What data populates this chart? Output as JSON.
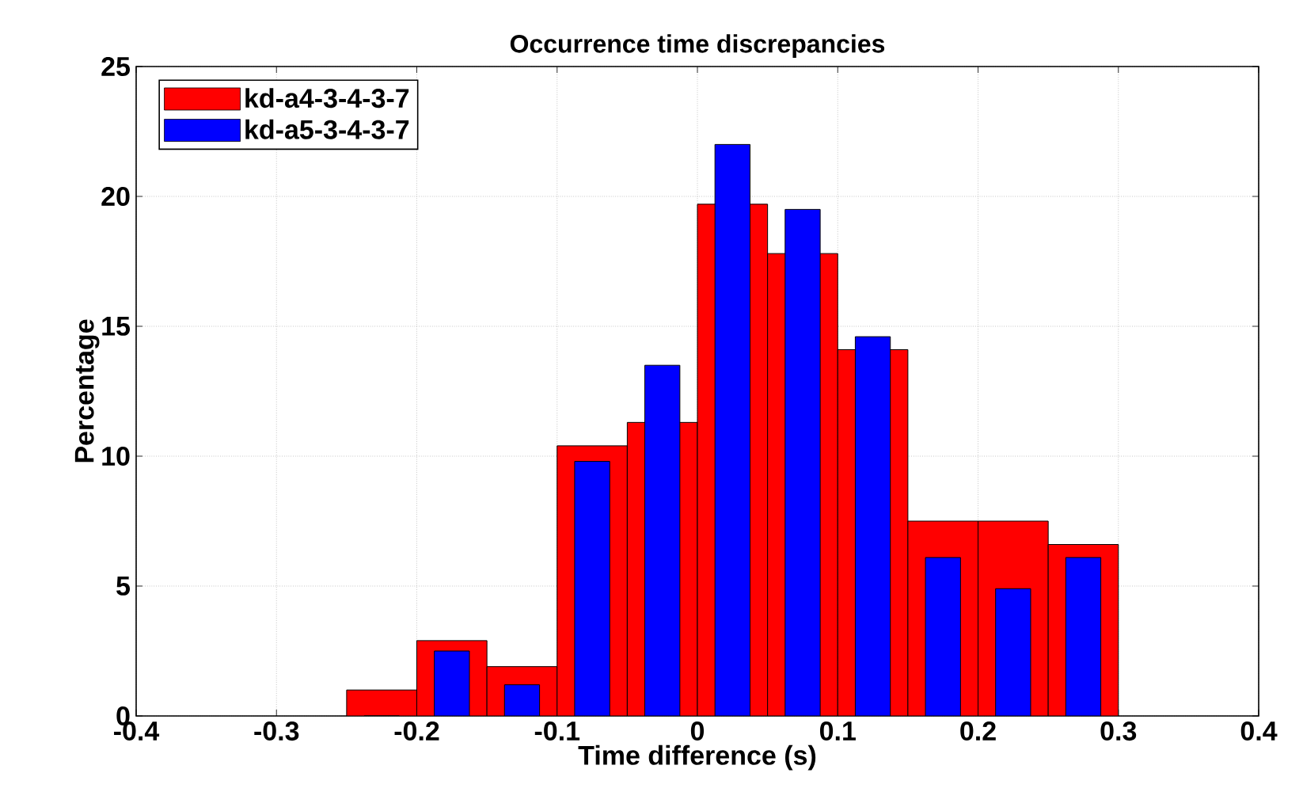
{
  "chart_data": {
    "type": "histogram",
    "title": "Occurrence time discrepancies",
    "xlabel": "Time difference (s)",
    "ylabel": "Percentage",
    "bins": [
      -0.25,
      -0.2,
      -0.15,
      -0.1,
      -0.05,
      0,
      0.05,
      0.1,
      0.15,
      0.2,
      0.25,
      0.3
    ],
    "series": [
      {
        "name": "kd-a4-3-4-3-7",
        "color": "#ff0000",
        "values": [
          1.0,
          2.9,
          1.9,
          10.4,
          11.3,
          19.7,
          17.8,
          14.1,
          7.5,
          7.5,
          6.6
        ]
      },
      {
        "name": "kd-a5-3-4-3-7",
        "color": "#0000ff",
        "values": [
          0,
          2.5,
          1.2,
          9.8,
          13.5,
          22.0,
          19.5,
          14.6,
          6.1,
          4.9,
          6.1
        ]
      }
    ],
    "xlim": [
      -0.4,
      0.4
    ],
    "ylim": [
      0,
      25
    ],
    "xticks": [
      -0.4,
      -0.3,
      -0.2,
      -0.1,
      0,
      0.1,
      0.2,
      0.3,
      0.4
    ],
    "yticks": [
      0,
      5,
      10,
      15,
      20,
      25
    ],
    "grid": true,
    "legend": "top left"
  }
}
